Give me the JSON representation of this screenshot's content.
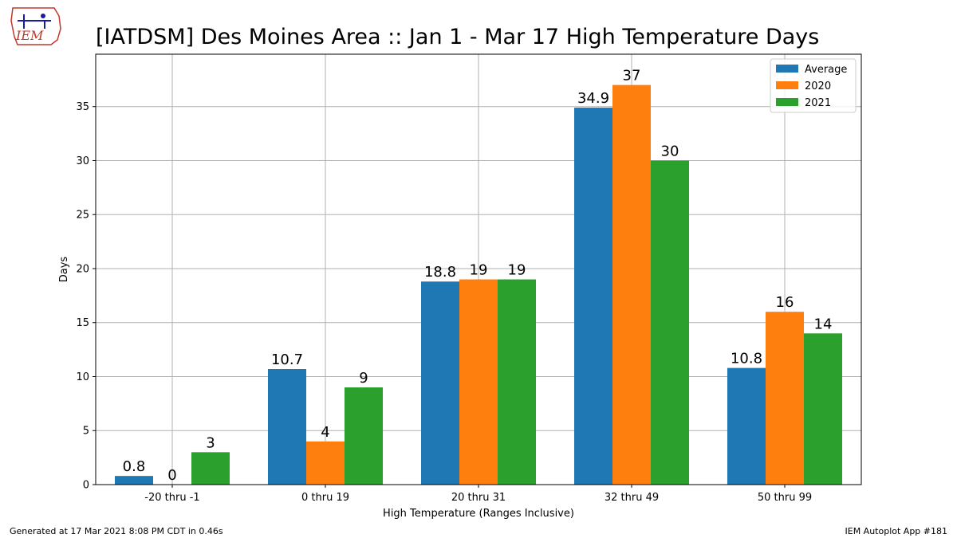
{
  "logo": {
    "text": "IEM"
  },
  "footer": {
    "generated": "Generated at 17 Mar 2021 8:08 PM CDT in 0.46s",
    "app": "IEM Autoplot App #181"
  },
  "colors": {
    "Average": "#1f77b4",
    "2020": "#ff7f0e",
    "2021": "#2ca02c"
  },
  "chart_data": {
    "type": "bar",
    "title": "[IATDSM] Des Moines Area :: Jan 1 - Mar 17 High Temperature Days",
    "xlabel": "High Temperature (Ranges Inclusive)",
    "ylabel": "Days",
    "categories": [
      "-20 thru -1",
      "0 thru 19",
      "20 thru 31",
      "32 thru 49",
      "50 thru 99"
    ],
    "series": [
      {
        "name": "Average",
        "values": [
          0.8,
          10.7,
          18.8,
          34.9,
          10.8
        ],
        "labels": [
          "0.8",
          "10.7",
          "18.8",
          "34.9",
          "10.8"
        ]
      },
      {
        "name": "2020",
        "values": [
          0,
          4,
          19,
          37,
          16
        ],
        "labels": [
          "0",
          "4",
          "19",
          "37",
          "16"
        ]
      },
      {
        "name": "2021",
        "values": [
          3,
          9,
          19,
          30,
          14
        ],
        "labels": [
          "3",
          "9",
          "19",
          "30",
          "14"
        ]
      }
    ],
    "ylim": [
      0,
      39.85
    ],
    "yticks": [
      0,
      5,
      10,
      15,
      20,
      25,
      30,
      35
    ],
    "grid": true,
    "legend": "top-right"
  }
}
